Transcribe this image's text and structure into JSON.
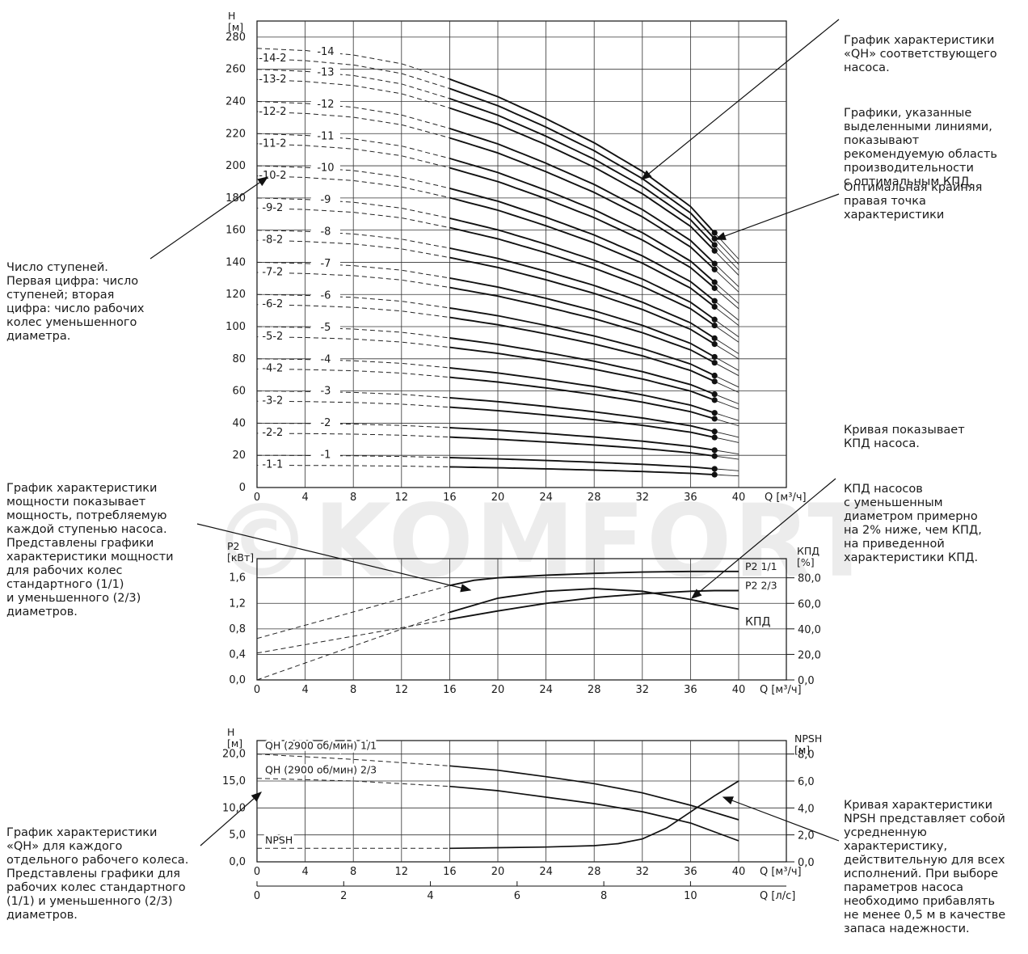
{
  "watermark": "©KOMFORT",
  "annotations": {
    "stages": "Число ступеней.\nПервая цифра: число\nступеней; вторая\nцифра: число рабочих\nколес уменьшенного\nдиаметра.",
    "qh_curve": "График характеристики\n«QH» соответствующего\nнасоса.",
    "recommended": "Графики, указанные\nвыделенными линиями,\nпоказывают\nрекомендуемую область\nпроизводительности\nс оптимальным КПД.",
    "optimal_point": "Оптимальная крайняя\nправая точка\nхарактеристики",
    "power": "График характеристики\nмощности показывает\nмощность, потребляемую\nкаждой ступенью насоса.\nПредставлены графики\nхарактеристики мощности\nдля рабочих колес\nстандартного (1/1)\nи уменьшенного (2/3)\nдиаметров.",
    "efficiency_1": "Кривая показывает\nКПД насоса.",
    "efficiency_2": "КПД насосов\nс уменьшенным\nдиаметром примерно\nна 2% ниже, чем КПД,\nна приведенной\nхарактеристики КПД.",
    "qh_impeller": "График характеристики\n«QH» для каждого\nотдельного рабочего колеса.\nПредставлены графики для\nрабочих колес стандартного\n(1/1) и уменьшенного (2/3)\nдиаметров.",
    "npsh": "Кривая характеристики\nNPSH представляет собой\nусредненную\nхарактеристику,\nдействительную для всех\nисполнений. При выборе\nпараметров насоса\nнеобходимо прибавлять\nне менее 0,5 м в качестве\nзапаса надежности."
  },
  "chart_data": [
    {
      "type": "line",
      "ylabel": "H\n[м]",
      "xlabel": "Q [м³/ч]",
      "xlim": [
        0,
        40
      ],
      "ylim": [
        0,
        290
      ],
      "xticks": [
        "0",
        "4",
        "8",
        "12",
        "16",
        "20",
        "24",
        "28",
        "32",
        "36",
        "40"
      ],
      "yticks": [
        "0",
        "20",
        "40",
        "60",
        "80",
        "100",
        "120",
        "140",
        "160",
        "180",
        "200",
        "220",
        "240",
        "260",
        "280"
      ],
      "grid": true,
      "recommended_range_q": [
        16,
        38
      ],
      "curves": [
        {
          "name": "-1-1",
          "h0": 13.8
        },
        {
          "name": "-1",
          "h0": 20.0
        },
        {
          "name": "-2-2",
          "h0": 33.7
        },
        {
          "name": "-2",
          "h0": 40.0
        },
        {
          "name": "-3-2",
          "h0": 53.7
        },
        {
          "name": "-3",
          "h0": 60.0
        },
        {
          "name": "-4-2",
          "h0": 73.7
        },
        {
          "name": "-4",
          "h0": 80.0
        },
        {
          "name": "-5-2",
          "h0": 93.7
        },
        {
          "name": "-5",
          "h0": 100.0
        },
        {
          "name": "-6-2",
          "h0": 113.7
        },
        {
          "name": "-6",
          "h0": 120.0
        },
        {
          "name": "-7-2",
          "h0": 133.7
        },
        {
          "name": "-7",
          "h0": 140.0
        },
        {
          "name": "-8-2",
          "h0": 153.7
        },
        {
          "name": "-8",
          "h0": 160.0
        },
        {
          "name": "-9-2",
          "h0": 173.7
        },
        {
          "name": "-9",
          "h0": 180.0
        },
        {
          "name": "-10-2",
          "h0": 193.7
        },
        {
          "name": "-10",
          "h0": 200.0
        },
        {
          "name": "-11-2",
          "h0": 213.7
        },
        {
          "name": "-11",
          "h0": 220.0
        },
        {
          "name": "-12-2",
          "h0": 233.7
        },
        {
          "name": "-12",
          "h0": 240.0
        },
        {
          "name": "-13-2",
          "h0": 253.7
        },
        {
          "name": "-13",
          "h0": 260.0
        },
        {
          "name": "-14-2",
          "h0": 266.7
        },
        {
          "name": "-14",
          "h0": 273.0
        }
      ],
      "qh_shape_per_stage": {
        "q": [
          0,
          4,
          8,
          12,
          16,
          20,
          24,
          28,
          32,
          36,
          38,
          40
        ],
        "h_fraction": [
          1.0,
          0.995,
          0.985,
          0.965,
          0.93,
          0.89,
          0.84,
          0.785,
          0.72,
          0.64,
          0.58,
          0.52
        ]
      },
      "optimal_point_q": 38
    },
    {
      "type": "line",
      "ylabel": "P2\n[кВт]",
      "y2label": "КПД\n[%]",
      "xlabel": "Q [м³/ч]",
      "xlim": [
        0,
        40
      ],
      "ylim": [
        0,
        1.9
      ],
      "y2lim": [
        0,
        95
      ],
      "xticks": [
        "0",
        "4",
        "8",
        "12",
        "16",
        "20",
        "24",
        "28",
        "32",
        "36",
        "40"
      ],
      "yticks": [
        "0,0",
        "0,4",
        "0,8",
        "1,2",
        "1,6"
      ],
      "y2ticks": [
        "0,0",
        "20,0",
        "40,0",
        "60,0",
        "80,0"
      ],
      "grid": true,
      "series": [
        {
          "name": "P2 1/1",
          "axis": "left",
          "x": [
            0,
            16,
            18,
            20,
            24,
            28,
            32,
            36,
            38,
            40
          ],
          "y": [
            0.65,
            1.48,
            1.56,
            1.6,
            1.64,
            1.67,
            1.69,
            1.7,
            1.7,
            1.7
          ],
          "dashed_until": 16
        },
        {
          "name": "P2 2/3",
          "axis": "left",
          "x": [
            0,
            16,
            20,
            24,
            28,
            32,
            36,
            38,
            40
          ],
          "y": [
            0.42,
            0.95,
            1.08,
            1.2,
            1.29,
            1.35,
            1.39,
            1.4,
            1.4
          ],
          "dashed_until": 16
        },
        {
          "name": "КПД",
          "axis": "right",
          "x": [
            0,
            16,
            18,
            20,
            24,
            28,
            32,
            36,
            38,
            40
          ],
          "y": [
            0,
            53,
            58.5,
            64,
            69.5,
            71.5,
            69.5,
            63,
            59,
            55.5
          ],
          "dashed_until": 16
        }
      ]
    },
    {
      "type": "line",
      "ylabel": "H\n[м]",
      "y2label": "NPSH\n[м]",
      "xlabel": "Q [м³/ч]",
      "x2label": "Q [л/с]",
      "xlim": [
        0,
        40
      ],
      "ylim": [
        0,
        22.5
      ],
      "y2lim": [
        0,
        9
      ],
      "xticks": [
        "0",
        "4",
        "8",
        "12",
        "16",
        "20",
        "24",
        "28",
        "32",
        "36",
        "40"
      ],
      "x2ticks": [
        "0",
        "2",
        "4",
        "6",
        "8",
        "10"
      ],
      "yticks": [
        "0,0",
        "5,0",
        "10,0",
        "15,0",
        "20,0"
      ],
      "y2ticks": [
        "0,0",
        "2,0",
        "4,0",
        "6,0",
        "8,0"
      ],
      "grid": true,
      "series": [
        {
          "name": "QH (2900 об/мин) 1/1",
          "axis": "left",
          "x": [
            0,
            8,
            16,
            20,
            24,
            28,
            32,
            36,
            40
          ],
          "y": [
            20.0,
            19.0,
            17.8,
            17.0,
            15.8,
            14.5,
            12.8,
            10.5,
            7.8
          ],
          "dashed_until": 16
        },
        {
          "name": "QH (2900 об/мин) 2/3",
          "axis": "left",
          "x": [
            0,
            8,
            16,
            20,
            24,
            28,
            32,
            36,
            40
          ],
          "y": [
            15.5,
            15.0,
            14.0,
            13.2,
            12.0,
            10.8,
            9.3,
            7.2,
            3.9
          ],
          "dashed_until": 16
        },
        {
          "name": "NPSH",
          "axis": "right",
          "x": [
            0,
            16,
            20,
            24,
            28,
            30,
            32,
            34,
            36,
            38,
            40
          ],
          "y": [
            1.0,
            1.0,
            1.05,
            1.1,
            1.2,
            1.35,
            1.7,
            2.5,
            3.7,
            4.9,
            6.0
          ],
          "dashed_until": 16
        }
      ]
    }
  ]
}
